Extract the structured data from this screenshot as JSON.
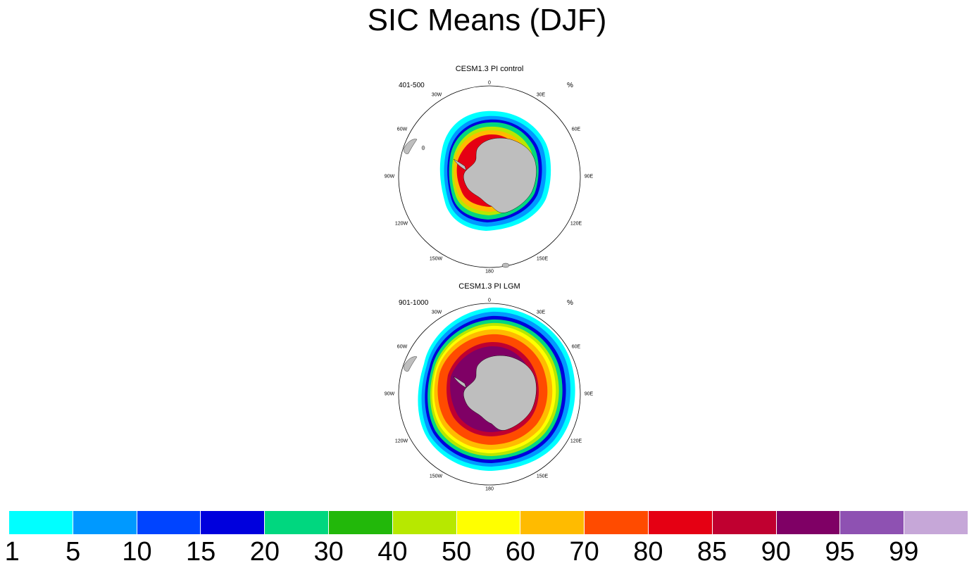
{
  "title": "SIC Means (DJF)",
  "panels": [
    {
      "title": "CESM1.3 PI control",
      "period": "401-500",
      "units": "%"
    },
    {
      "title": "CESM1.3 PI LGM",
      "period": "901-1000",
      "units": "%"
    }
  ],
  "map_labels": {
    "lon_0": "0",
    "lon_30e": "30E",
    "lon_60e": "60E",
    "lon_90e": "90E",
    "lon_120e": "120E",
    "lon_150e": "150E",
    "lon_180": "180",
    "lon_150w": "150W",
    "lon_120w": "120W",
    "lon_90w": "90W",
    "lon_60w": "60W",
    "lon_30w": "30W"
  },
  "colorbar": {
    "labels": [
      "1",
      "5",
      "10",
      "15",
      "20",
      "30",
      "40",
      "50",
      "60",
      "70",
      "80",
      "85",
      "90",
      "95",
      "99"
    ],
    "colors": [
      "#00ffff",
      "#0099ff",
      "#0044ff",
      "#0000dd",
      "#00d77f",
      "#22b80a",
      "#b7e800",
      "#ffff00",
      "#ffbb00",
      "#ff4b00",
      "#e50013",
      "#c00030",
      "#7f0065",
      "#8e51b2",
      "#c6a7d8"
    ]
  },
  "map_colors": {
    "land": "#bebebe",
    "coast": "#000000",
    "ocean": "#ffffff"
  }
}
